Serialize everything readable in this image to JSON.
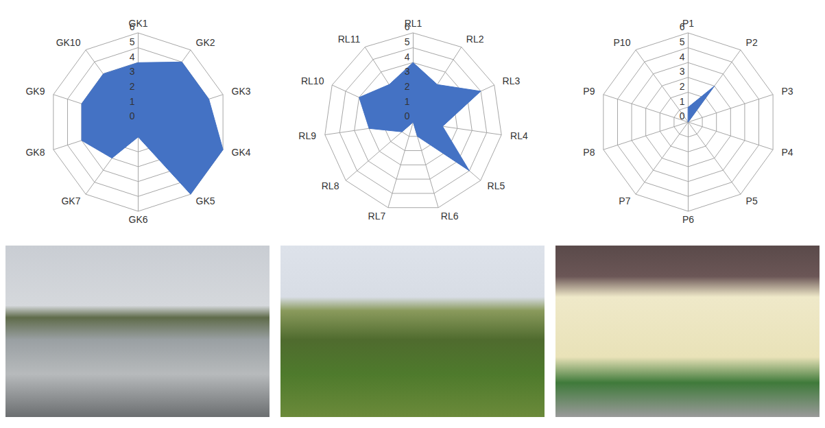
{
  "chart_data": [
    {
      "type": "radar",
      "categories": [
        "GK1",
        "GK2",
        "GK3",
        "GK4",
        "GK5",
        "GK6",
        "GK7",
        "GK8",
        "GK9",
        "GK10"
      ],
      "values": [
        4,
        5,
        5,
        6,
        6,
        1,
        3,
        4,
        4,
        4
      ],
      "color": "#4472c4",
      "ylim": [
        0,
        6
      ],
      "yticks": [
        0,
        1,
        2,
        3,
        4,
        5,
        6
      ],
      "grid": true
    },
    {
      "type": "radar",
      "categories": [
        "RL1",
        "RL2",
        "RL3",
        "RL4",
        "RL5",
        "RL6",
        "RL7",
        "RL8",
        "RL9",
        "RL10",
        "RL11"
      ],
      "values": [
        4,
        3,
        5,
        2,
        5,
        1,
        0,
        1,
        3,
        4,
        3
      ],
      "color": "#4472c4",
      "ylim": [
        0,
        6
      ],
      "yticks": [
        0,
        1,
        2,
        3,
        4,
        5,
        6
      ],
      "grid": true
    },
    {
      "type": "radar",
      "categories": [
        "P1",
        "P2",
        "P3",
        "P4",
        "P5",
        "P6",
        "P7",
        "P8",
        "P9",
        "P10"
      ],
      "values": [
        1,
        3,
        0,
        0,
        0,
        0,
        0,
        0,
        0,
        0
      ],
      "color": "#4472c4",
      "ylim": [
        0,
        6
      ],
      "yticks": [
        0,
        1,
        2,
        3,
        4,
        5,
        6
      ],
      "grid": true
    }
  ]
}
